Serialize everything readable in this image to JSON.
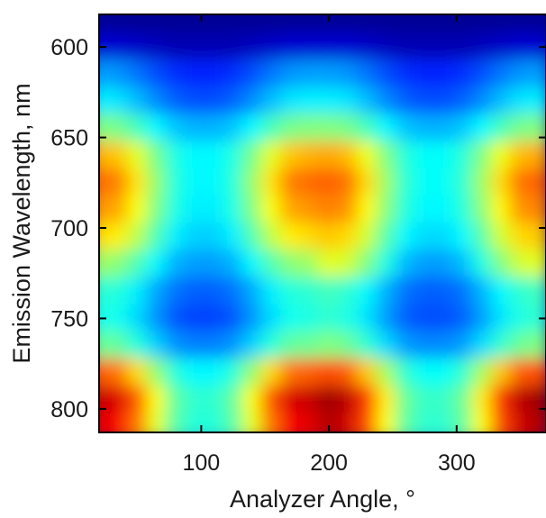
{
  "chart_data": {
    "type": "heatmap",
    "xlabel": "Analyzer Angle, °",
    "ylabel": "Emission Wavelength, nm",
    "xlim": [
      20,
      370
    ],
    "ylim": [
      582,
      813
    ],
    "xticks": [
      100,
      200,
      300
    ],
    "yticks": [
      600,
      650,
      700,
      750,
      800
    ],
    "colormap": "jet",
    "color_scale": "low = dark blue, high = dark red",
    "grid": false,
    "x": [
      20,
      35,
      50,
      65,
      80,
      95,
      110,
      125,
      140,
      155,
      170,
      185,
      200,
      215,
      230,
      245,
      260,
      275,
      290,
      305,
      320,
      335,
      350,
      365
    ],
    "y": [
      585,
      600,
      615,
      630,
      645,
      660,
      675,
      690,
      705,
      720,
      735,
      750,
      765,
      780,
      795,
      810
    ],
    "z": [
      [
        0.02,
        0.02,
        0.02,
        0.02,
        0.02,
        0.02,
        0.02,
        0.02,
        0.02,
        0.02,
        0.02,
        0.02,
        0.02,
        0.02,
        0.02,
        0.02,
        0.02,
        0.02,
        0.02,
        0.02,
        0.02,
        0.02,
        0.02,
        0.02
      ],
      [
        0.08,
        0.08,
        0.07,
        0.06,
        0.05,
        0.05,
        0.05,
        0.05,
        0.06,
        0.07,
        0.08,
        0.08,
        0.08,
        0.08,
        0.07,
        0.06,
        0.05,
        0.05,
        0.05,
        0.05,
        0.06,
        0.07,
        0.08,
        0.08
      ],
      [
        0.28,
        0.27,
        0.24,
        0.2,
        0.17,
        0.16,
        0.16,
        0.17,
        0.2,
        0.24,
        0.27,
        0.28,
        0.28,
        0.27,
        0.24,
        0.2,
        0.17,
        0.16,
        0.16,
        0.17,
        0.2,
        0.24,
        0.27,
        0.28
      ],
      [
        0.36,
        0.35,
        0.31,
        0.26,
        0.22,
        0.2,
        0.2,
        0.22,
        0.26,
        0.31,
        0.35,
        0.36,
        0.36,
        0.35,
        0.31,
        0.26,
        0.22,
        0.2,
        0.2,
        0.22,
        0.26,
        0.31,
        0.35,
        0.36
      ],
      [
        0.5,
        0.49,
        0.44,
        0.37,
        0.32,
        0.3,
        0.3,
        0.32,
        0.37,
        0.44,
        0.49,
        0.5,
        0.5,
        0.49,
        0.44,
        0.37,
        0.32,
        0.3,
        0.3,
        0.32,
        0.37,
        0.44,
        0.49,
        0.5
      ],
      [
        0.7,
        0.68,
        0.6,
        0.49,
        0.4,
        0.37,
        0.37,
        0.4,
        0.49,
        0.6,
        0.68,
        0.7,
        0.71,
        0.69,
        0.61,
        0.5,
        0.41,
        0.38,
        0.38,
        0.41,
        0.5,
        0.61,
        0.69,
        0.71
      ],
      [
        0.77,
        0.75,
        0.65,
        0.52,
        0.41,
        0.37,
        0.37,
        0.41,
        0.52,
        0.65,
        0.75,
        0.77,
        0.78,
        0.76,
        0.66,
        0.53,
        0.42,
        0.38,
        0.38,
        0.42,
        0.53,
        0.66,
        0.76,
        0.78
      ],
      [
        0.73,
        0.71,
        0.62,
        0.5,
        0.4,
        0.36,
        0.36,
        0.4,
        0.5,
        0.62,
        0.71,
        0.73,
        0.75,
        0.73,
        0.63,
        0.51,
        0.41,
        0.37,
        0.37,
        0.41,
        0.51,
        0.63,
        0.73,
        0.75
      ],
      [
        0.66,
        0.64,
        0.56,
        0.45,
        0.36,
        0.33,
        0.33,
        0.36,
        0.45,
        0.56,
        0.64,
        0.66,
        0.68,
        0.66,
        0.58,
        0.46,
        0.37,
        0.34,
        0.34,
        0.37,
        0.46,
        0.58,
        0.66,
        0.68
      ],
      [
        0.53,
        0.51,
        0.45,
        0.37,
        0.3,
        0.28,
        0.28,
        0.3,
        0.37,
        0.45,
        0.51,
        0.53,
        0.6,
        0.58,
        0.5,
        0.4,
        0.31,
        0.28,
        0.28,
        0.31,
        0.4,
        0.5,
        0.58,
        0.6
      ],
      [
        0.42,
        0.41,
        0.36,
        0.29,
        0.24,
        0.22,
        0.22,
        0.24,
        0.29,
        0.36,
        0.41,
        0.42,
        0.44,
        0.42,
        0.37,
        0.3,
        0.24,
        0.22,
        0.22,
        0.24,
        0.3,
        0.37,
        0.42,
        0.44
      ],
      [
        0.4,
        0.39,
        0.34,
        0.27,
        0.21,
        0.19,
        0.19,
        0.21,
        0.27,
        0.34,
        0.39,
        0.4,
        0.42,
        0.4,
        0.35,
        0.28,
        0.22,
        0.2,
        0.2,
        0.22,
        0.28,
        0.35,
        0.4,
        0.42
      ],
      [
        0.48,
        0.47,
        0.41,
        0.33,
        0.27,
        0.25,
        0.25,
        0.27,
        0.33,
        0.41,
        0.47,
        0.48,
        0.5,
        0.48,
        0.42,
        0.34,
        0.28,
        0.26,
        0.26,
        0.28,
        0.34,
        0.42,
        0.48,
        0.5
      ],
      [
        0.78,
        0.76,
        0.66,
        0.52,
        0.41,
        0.37,
        0.37,
        0.41,
        0.52,
        0.66,
        0.76,
        0.78,
        0.8,
        0.78,
        0.68,
        0.54,
        0.42,
        0.38,
        0.38,
        0.42,
        0.54,
        0.68,
        0.78,
        0.8
      ],
      [
        0.93,
        0.91,
        0.79,
        0.62,
        0.47,
        0.42,
        0.42,
        0.47,
        0.62,
        0.79,
        0.91,
        0.93,
        0.97,
        0.94,
        0.82,
        0.64,
        0.48,
        0.43,
        0.43,
        0.48,
        0.64,
        0.82,
        0.94,
        0.97
      ],
      [
        0.9,
        0.88,
        0.76,
        0.6,
        0.46,
        0.41,
        0.41,
        0.46,
        0.6,
        0.76,
        0.88,
        0.9,
        0.95,
        0.92,
        0.8,
        0.62,
        0.47,
        0.42,
        0.42,
        0.47,
        0.62,
        0.8,
        0.92,
        0.95
      ]
    ]
  }
}
